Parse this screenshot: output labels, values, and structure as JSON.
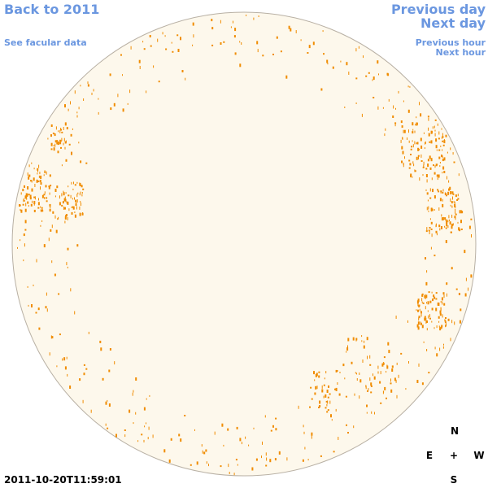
{
  "nav": {
    "back": "Back to 2011",
    "facular": "See facular data",
    "previous_day": "Previous day",
    "next_day": "Next day",
    "previous_hour": "Previous hour",
    "next_hour": "Next hour"
  },
  "timestamp": "2011-10-20T11:59:01",
  "compass": {
    "north": "N",
    "east": "E",
    "center": "+",
    "west": "W",
    "south": "S"
  }
}
